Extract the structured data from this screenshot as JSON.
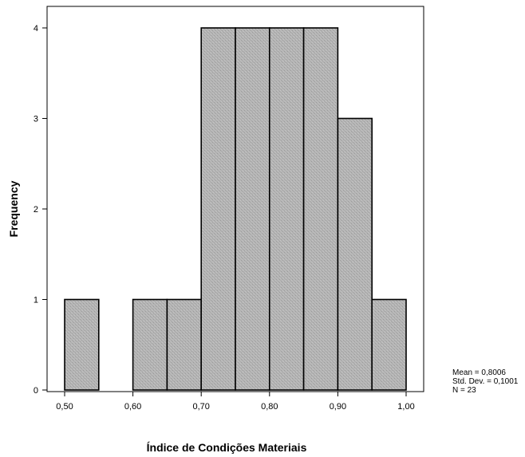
{
  "chart_data": {
    "type": "bar",
    "subtype": "histogram",
    "xlabel": "Índice de Condições Materiais",
    "ylabel": "Frequency",
    "bins": [
      {
        "start": 0.5,
        "end": 0.55,
        "count": 1
      },
      {
        "start": 0.55,
        "end": 0.6,
        "count": 0
      },
      {
        "start": 0.6,
        "end": 0.65,
        "count": 1
      },
      {
        "start": 0.65,
        "end": 0.7,
        "count": 1
      },
      {
        "start": 0.7,
        "end": 0.75,
        "count": 4
      },
      {
        "start": 0.75,
        "end": 0.8,
        "count": 4
      },
      {
        "start": 0.8,
        "end": 0.85,
        "count": 4
      },
      {
        "start": 0.85,
        "end": 0.9,
        "count": 4
      },
      {
        "start": 0.9,
        "end": 0.95,
        "count": 3
      },
      {
        "start": 0.95,
        "end": 1.0,
        "count": 1
      }
    ],
    "xlim": [
      0.5,
      1.0
    ],
    "ylim": [
      0,
      4
    ],
    "x_ticks": [
      {
        "value": 0.5,
        "label": "0,50"
      },
      {
        "value": 0.6,
        "label": "0,60"
      },
      {
        "value": 0.7,
        "label": "0,70"
      },
      {
        "value": 0.8,
        "label": "0,80"
      },
      {
        "value": 0.9,
        "label": "0,90"
      },
      {
        "value": 1.0,
        "label": "1,00"
      }
    ],
    "y_ticks": [
      {
        "value": 0,
        "label": "0"
      },
      {
        "value": 1,
        "label": "1"
      },
      {
        "value": 2,
        "label": "2"
      },
      {
        "value": 3,
        "label": "3"
      },
      {
        "value": 4,
        "label": "4"
      }
    ],
    "stats": {
      "mean": "Mean = 0,8006",
      "std_dev": "Std. Dev. = 0,1001",
      "n": "N = 23"
    },
    "grid": false,
    "bar_color": "#b4b4b4",
    "bar_edge_color": "#000000"
  }
}
